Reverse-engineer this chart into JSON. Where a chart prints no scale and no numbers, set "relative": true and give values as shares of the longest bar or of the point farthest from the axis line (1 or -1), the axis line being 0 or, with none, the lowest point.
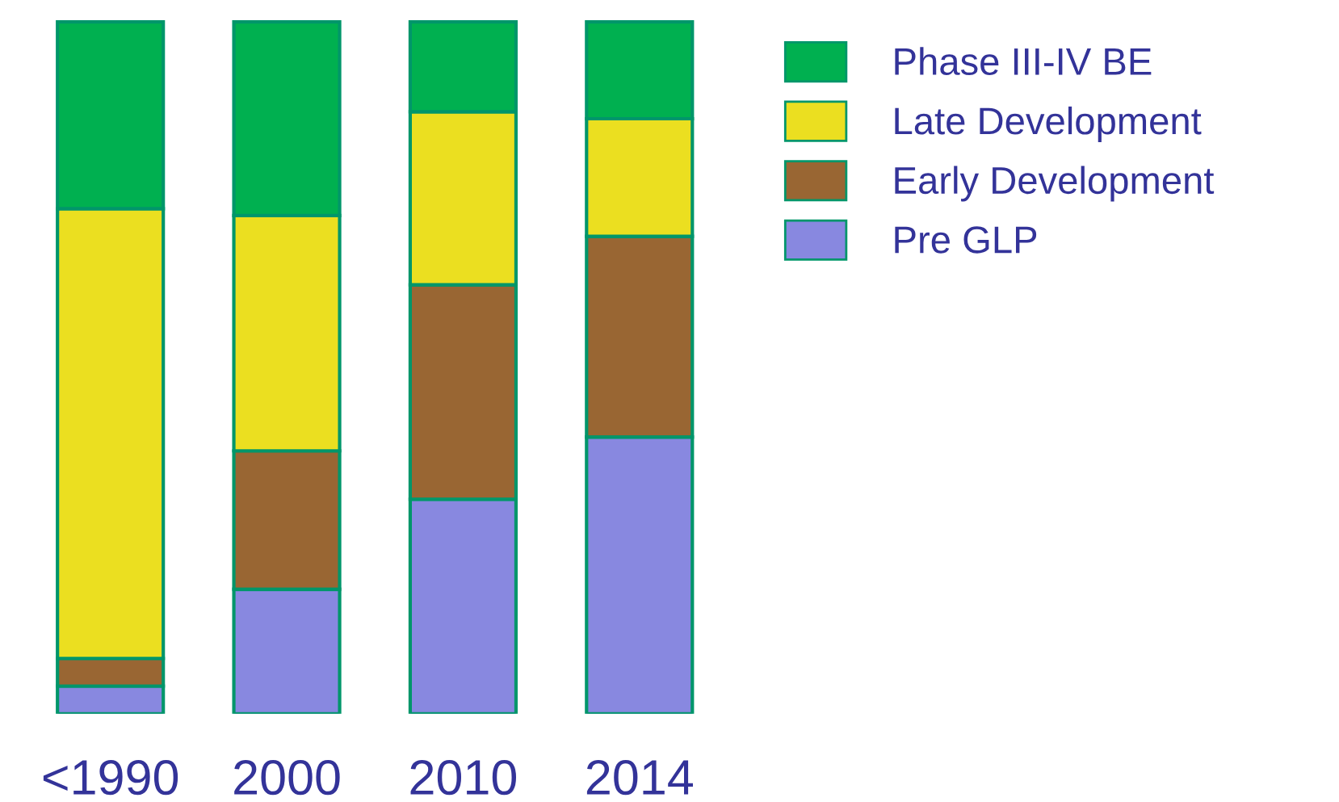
{
  "chart_data": {
    "type": "bar",
    "stacked": true,
    "relative": true,
    "categories": [
      "<1990",
      "2000",
      "2010",
      "2014"
    ],
    "series": [
      {
        "name": "Pre GLP",
        "color": "#8888e0",
        "values": [
          0.04,
          0.18,
          0.31,
          0.4
        ]
      },
      {
        "name": "Early Development",
        "color": "#996633",
        "values": [
          0.04,
          0.2,
          0.31,
          0.29
        ]
      },
      {
        "name": "Late Development",
        "color": "#ebdf20",
        "values": [
          0.65,
          0.34,
          0.25,
          0.17
        ]
      },
      {
        "name": "Phase III-IV BE",
        "color": "#00b050",
        "values": [
          0.27,
          0.28,
          0.13,
          0.14
        ]
      }
    ],
    "legend": "top right",
    "grid": false
  }
}
